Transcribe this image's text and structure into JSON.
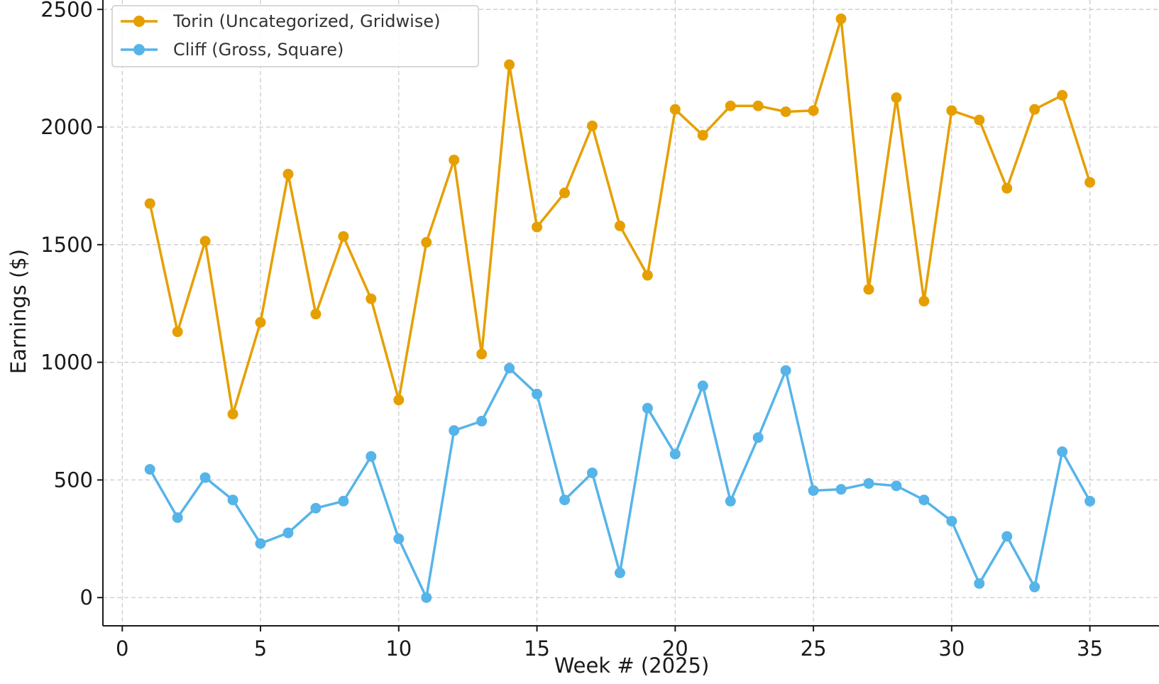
{
  "chart_data": {
    "type": "line",
    "title": "",
    "xlabel": "Week # (2025)",
    "ylabel": "Earnings ($)",
    "xlim": [
      -0.7,
      37.5
    ],
    "ylim": [
      -120,
      2540
    ],
    "xticks": [
      0,
      5,
      10,
      15,
      20,
      25,
      30,
      35
    ],
    "yticks": [
      0,
      500,
      1000,
      1500,
      2000,
      2500
    ],
    "grid": true,
    "legend_position": "top-left",
    "x": [
      1,
      2,
      3,
      4,
      5,
      6,
      7,
      8,
      9,
      10,
      11,
      12,
      13,
      14,
      15,
      16,
      17,
      18,
      19,
      20,
      21,
      22,
      23,
      24,
      25,
      26,
      27,
      28,
      29,
      30,
      31,
      32,
      33,
      34,
      35
    ],
    "series": [
      {
        "name": "Torin (Uncategorized, Gridwise)",
        "color": "#E69F00",
        "values": [
          1675,
          1130,
          1515,
          780,
          1170,
          1800,
          1205,
          1535,
          1270,
          840,
          1510,
          1860,
          1035,
          2265,
          1575,
          1720,
          2005,
          1580,
          1370,
          2075,
          1965,
          2090,
          2090,
          2065,
          2070,
          2460,
          1310,
          2125,
          1260,
          2070,
          2030,
          1740,
          2075,
          2135,
          1765
        ]
      },
      {
        "name": "Cliff (Gross, Square)",
        "color": "#56B4E9",
        "values": [
          545,
          340,
          510,
          415,
          230,
          275,
          380,
          410,
          600,
          250,
          0,
          710,
          750,
          975,
          865,
          415,
          530,
          105,
          805,
          610,
          900,
          410,
          680,
          965,
          455,
          460,
          485,
          475,
          415,
          325,
          60,
          260,
          45,
          620,
          410
        ]
      }
    ]
  }
}
